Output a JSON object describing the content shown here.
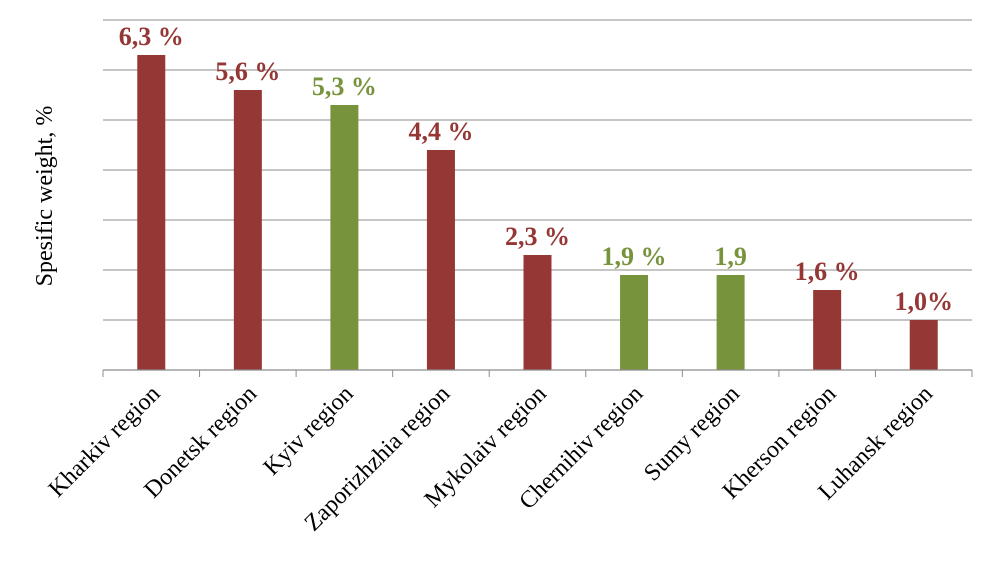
{
  "chart_data": {
    "type": "bar",
    "title": "",
    "xlabel": "",
    "ylabel": "Spesific weight, %",
    "ylim": [
      0,
      7
    ],
    "grid": true,
    "legend": "none",
    "categories": [
      "Kharkiv region",
      "Donetsk region",
      "Kyiv region",
      "Zaporizhzhia region",
      "Mykolaiv region",
      "Chernihiv region",
      "Sumy region",
      "Kherson region",
      "Luhansk region"
    ],
    "values": [
      6.3,
      5.6,
      5.3,
      4.4,
      2.3,
      1.9,
      1.9,
      1.6,
      1.0
    ],
    "data_labels": [
      "6,3 %",
      "5,6 %",
      "5,3 %",
      "4,4 %",
      "2,3 %",
      "1,9 %",
      "1,9",
      "1,6 %",
      "1,0%"
    ],
    "bar_colors": [
      "#953735",
      "#953735",
      "#77933c",
      "#953735",
      "#953735",
      "#77933c",
      "#77933c",
      "#953735",
      "#953735"
    ]
  }
}
